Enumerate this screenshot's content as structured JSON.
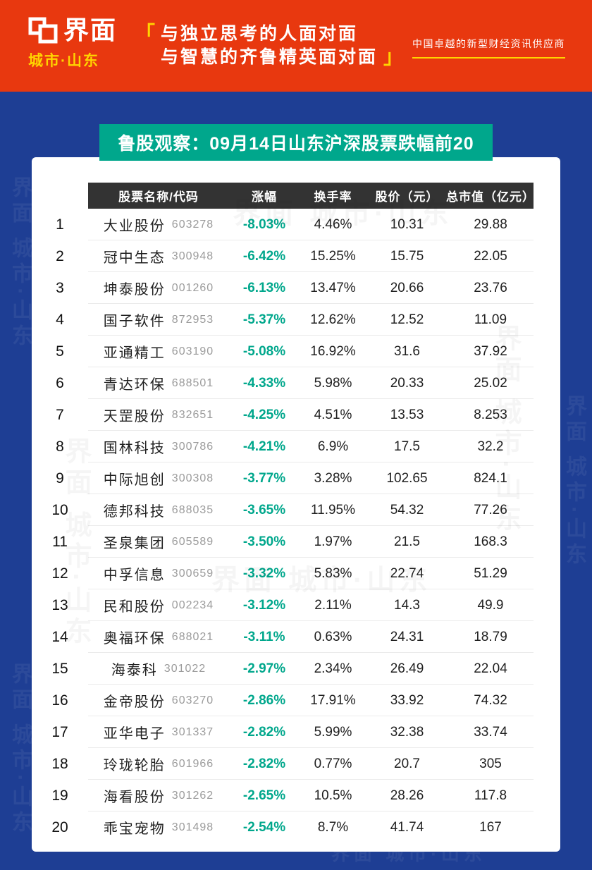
{
  "header": {
    "logo": {
      "name": "界面",
      "sub": "城市·山东"
    },
    "quote": {
      "open": "「",
      "line1": "与独立思考的人面对面",
      "line2": "与智慧的齐鲁精英面对面",
      "close": "」"
    },
    "tagline": "中国卓越的新型财经资讯供应商"
  },
  "chart_data": {
    "type": "table",
    "title": "鲁股观察：09月14日山东沪深股票跌幅前20",
    "columns": [
      "股票名称/代码",
      "涨幅",
      "换手率",
      "股价（元）",
      "总市值（亿元）"
    ],
    "rows": [
      {
        "rank": "1",
        "name": "大业股份",
        "code": "603278",
        "change": "-8.03%",
        "turnover": "4.46%",
        "price": "10.31",
        "market_cap": "29.88"
      },
      {
        "rank": "2",
        "name": "冠中生态",
        "code": "300948",
        "change": "-6.42%",
        "turnover": "15.25%",
        "price": "15.75",
        "market_cap": "22.05"
      },
      {
        "rank": "3",
        "name": "坤泰股份",
        "code": "001260",
        "change": "-6.13%",
        "turnover": "13.47%",
        "price": "20.66",
        "market_cap": "23.76"
      },
      {
        "rank": "4",
        "name": "国子软件",
        "code": "872953",
        "change": "-5.37%",
        "turnover": "12.62%",
        "price": "12.52",
        "market_cap": "11.09"
      },
      {
        "rank": "5",
        "name": "亚通精工",
        "code": "603190",
        "change": "-5.08%",
        "turnover": "16.92%",
        "price": "31.6",
        "market_cap": "37.92"
      },
      {
        "rank": "6",
        "name": "青达环保",
        "code": "688501",
        "change": "-4.33%",
        "turnover": "5.98%",
        "price": "20.33",
        "market_cap": "25.02"
      },
      {
        "rank": "7",
        "name": "天罡股份",
        "code": "832651",
        "change": "-4.25%",
        "turnover": "4.51%",
        "price": "13.53",
        "market_cap": "8.253"
      },
      {
        "rank": "8",
        "name": "国林科技",
        "code": "300786",
        "change": "-4.21%",
        "turnover": "6.9%",
        "price": "17.5",
        "market_cap": "32.2"
      },
      {
        "rank": "9",
        "name": "中际旭创",
        "code": "300308",
        "change": "-3.77%",
        "turnover": "3.28%",
        "price": "102.65",
        "market_cap": "824.1"
      },
      {
        "rank": "10",
        "name": "德邦科技",
        "code": "688035",
        "change": "-3.65%",
        "turnover": "11.95%",
        "price": "54.32",
        "market_cap": "77.26"
      },
      {
        "rank": "11",
        "name": "圣泉集团",
        "code": "605589",
        "change": "-3.50%",
        "turnover": "1.97%",
        "price": "21.5",
        "market_cap": "168.3"
      },
      {
        "rank": "12",
        "name": "中孚信息",
        "code": "300659",
        "change": "-3.32%",
        "turnover": "5.83%",
        "price": "22.74",
        "market_cap": "51.29"
      },
      {
        "rank": "13",
        "name": "民和股份",
        "code": "002234",
        "change": "-3.12%",
        "turnover": "2.11%",
        "price": "14.3",
        "market_cap": "49.9"
      },
      {
        "rank": "14",
        "name": "奥福环保",
        "code": "688021",
        "change": "-3.11%",
        "turnover": "0.63%",
        "price": "24.31",
        "market_cap": "18.79"
      },
      {
        "rank": "15",
        "name": "海泰科",
        "code": "301022",
        "change": "-2.97%",
        "turnover": "2.34%",
        "price": "26.49",
        "market_cap": "22.04"
      },
      {
        "rank": "16",
        "name": "金帝股份",
        "code": "603270",
        "change": "-2.86%",
        "turnover": "17.91%",
        "price": "33.92",
        "market_cap": "74.32"
      },
      {
        "rank": "17",
        "name": "亚华电子",
        "code": "301337",
        "change": "-2.82%",
        "turnover": "5.99%",
        "price": "32.38",
        "market_cap": "33.74"
      },
      {
        "rank": "18",
        "name": "玲珑轮胎",
        "code": "601966",
        "change": "-2.82%",
        "turnover": "0.77%",
        "price": "20.7",
        "market_cap": "305"
      },
      {
        "rank": "19",
        "name": "海看股份",
        "code": "301262",
        "change": "-2.65%",
        "turnover": "10.5%",
        "price": "28.26",
        "market_cap": "117.8"
      },
      {
        "rank": "20",
        "name": "乖宝宠物",
        "code": "301498",
        "change": "-2.54%",
        "turnover": "8.7%",
        "price": "41.74",
        "market_cap": "167"
      }
    ]
  },
  "watermark": {
    "text": "界面 城市·山东"
  },
  "colors": {
    "header_red": "#e8380f",
    "accent_yellow": "#ffd400",
    "background_navy": "#1e3e94",
    "banner_teal": "#00a78c",
    "table_header_dark": "#333333",
    "change_teal": "#00a78c"
  }
}
